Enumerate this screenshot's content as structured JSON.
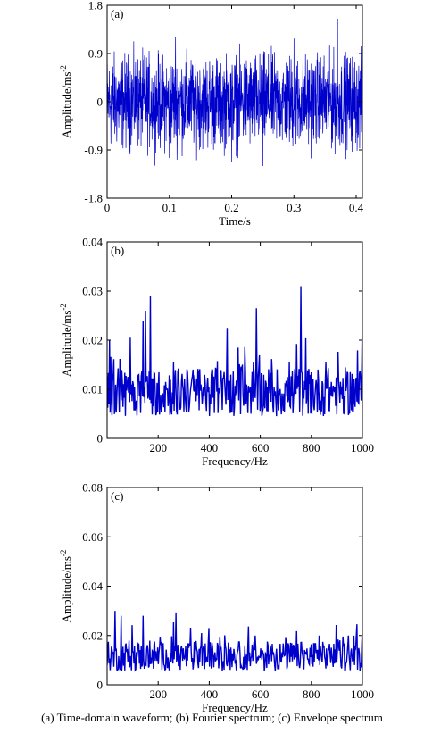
{
  "caption": "(a) Time-domain waveform; (b) Fourier spectrum; (c) Envelope spectrum",
  "chart_data": [
    {
      "id": "a",
      "type": "line",
      "panel_label": "(a)",
      "xlabel": "Time/s",
      "ylabel": "Amplitude/ms",
      "ylabel_sup": "-2",
      "xlim": [
        0,
        0.41
      ],
      "ylim": [
        -1.8,
        1.8
      ],
      "xticks": [
        0,
        0.1,
        0.2,
        0.3,
        0.4
      ],
      "xtick_labels": [
        "0",
        "0.1",
        "0.2",
        "0.3",
        "0.4"
      ],
      "yticks": [
        -1.8,
        -0.9,
        0,
        0.9,
        1.8
      ],
      "ytick_labels": [
        "-1.8",
        "-0.9",
        "0",
        "0.9",
        "1.8"
      ],
      "color": "#0000cc",
      "signal": {
        "kind": "noise",
        "n": 1400,
        "amplitude_rms": 0.3,
        "peaks": [
          [
            0.37,
            1.55
          ],
          [
            0.11,
            1.2
          ],
          [
            0.3,
            1.18
          ],
          [
            0.25,
            -1.2
          ],
          [
            0.2,
            -1.13
          ],
          [
            0.1,
            -1.05
          ]
        ]
      }
    },
    {
      "id": "b",
      "type": "line",
      "panel_label": "(b)",
      "xlabel": "Frequency/Hz",
      "ylabel": "Amplitude/ms",
      "ylabel_sup": "-2",
      "xlim": [
        0,
        1000
      ],
      "ylim": [
        0,
        0.04
      ],
      "xticks": [
        200,
        400,
        600,
        800,
        1000
      ],
      "xtick_labels": [
        "200",
        "400",
        "600",
        "800",
        "1000"
      ],
      "yticks": [
        0,
        0.01,
        0.02,
        0.03,
        0.04
      ],
      "ytick_labels": [
        "0",
        "0.01",
        "0.02",
        "0.03",
        "0.04"
      ],
      "color": "#0000cc",
      "signal": {
        "kind": "spectrum",
        "n": 420,
        "base": 0.009,
        "spread": 0.005,
        "peaks": [
          [
            170,
            0.029
          ],
          [
            150,
            0.026
          ],
          [
            760,
            0.031
          ],
          [
            1000,
            0.0255
          ],
          [
            585,
            0.0265
          ],
          [
            470,
            0.0225
          ],
          [
            90,
            0.0205
          ],
          [
            140,
            0.024
          ]
        ]
      }
    },
    {
      "id": "c",
      "type": "line",
      "panel_label": "(c)",
      "xlabel": "Frequency/Hz",
      "ylabel": "Amplitude/ms",
      "ylabel_sup": "-2",
      "xlim": [
        0,
        1000
      ],
      "ylim": [
        0,
        0.08
      ],
      "xticks": [
        200,
        400,
        600,
        800,
        1000
      ],
      "xtick_labels": [
        "200",
        "400",
        "600",
        "800",
        "1000"
      ],
      "yticks": [
        0,
        0.02,
        0.04,
        0.06,
        0.08
      ],
      "ytick_labels": [
        "0",
        "0.02",
        "0.04",
        "0.06",
        "0.08"
      ],
      "color": "#0000cc",
      "signal": {
        "kind": "spectrum",
        "n": 420,
        "base": 0.011,
        "spread": 0.006,
        "peaks": [
          [
            30,
            0.03
          ],
          [
            55,
            0.028
          ],
          [
            140,
            0.028
          ],
          [
            270,
            0.029
          ],
          [
            370,
            0.021
          ],
          [
            580,
            0.02
          ],
          [
            700,
            0.019
          ],
          [
            830,
            0.02
          ],
          [
            1000,
            0.022
          ]
        ]
      }
    }
  ]
}
